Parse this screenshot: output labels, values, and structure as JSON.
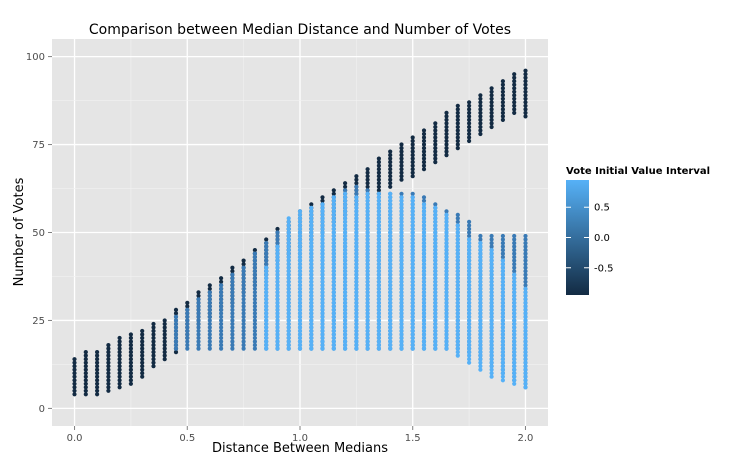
{
  "chart_data": {
    "type": "scatter",
    "title": "Comparison between Median Distance and Number of Votes",
    "xlabel": "Distance Between Medians",
    "ylabel": "Number of Votes",
    "xlim": [
      -0.1,
      2.1
    ],
    "ylim": [
      -5,
      105
    ],
    "x_ticks": [
      0.0,
      0.5,
      1.0,
      1.5,
      2.0
    ],
    "x_tick_labels": [
      "0.0",
      "0.5",
      "1.0",
      "1.5",
      "2.0"
    ],
    "y_ticks": [
      0,
      25,
      50,
      75,
      100
    ],
    "y_tick_labels": [
      "0",
      "25",
      "50",
      "75",
      "100"
    ],
    "grid": true,
    "x_step": 0.05,
    "color_low": "#132b43",
    "color_high": "#56b1f7",
    "background": "#e5e5e5",
    "legend": {
      "title": "Vote Initial Value Interval",
      "placement": "right",
      "range": [
        -0.95,
        0.95
      ],
      "ticks": [
        0.5,
        0.0,
        -0.5
      ],
      "tick_labels": [
        "0.5",
        "0.0",
        "-0.5"
      ]
    },
    "series": [
      {
        "color": "#132b43",
        "columns": [
          {
            "x": 0.0,
            "y": [
              4,
              14
            ]
          },
          {
            "x": 0.05,
            "y": [
              4,
              16
            ]
          },
          {
            "x": 0.1,
            "y": [
              4,
              16
            ]
          },
          {
            "x": 0.15,
            "y": [
              5,
              18
            ]
          },
          {
            "x": 0.2,
            "y": [
              6,
              20
            ]
          },
          {
            "x": 0.25,
            "y": [
              7,
              21
            ]
          },
          {
            "x": 0.3,
            "y": [
              9,
              22
            ]
          },
          {
            "x": 0.35,
            "y": [
              12,
              24
            ]
          },
          {
            "x": 0.4,
            "y": [
              14,
              25
            ]
          },
          {
            "x": 0.45,
            "y": [
              16,
              28
            ]
          },
          {
            "x": 0.5,
            "y": [
              20,
              30
            ]
          },
          {
            "x": 0.55,
            "y": [
              24,
              33
            ]
          },
          {
            "x": 0.6,
            "y": [
              26,
              35
            ]
          },
          {
            "x": 0.65,
            "y": [
              28,
              37
            ]
          },
          {
            "x": 0.7,
            "y": [
              30,
              40
            ]
          },
          {
            "x": 0.75,
            "y": [
              33,
              42
            ]
          },
          {
            "x": 0.8,
            "y": [
              35,
              45
            ]
          },
          {
            "x": 0.85,
            "y": [
              38,
              48
            ]
          },
          {
            "x": 0.9,
            "y": [
              42,
              51
            ]
          },
          {
            "x": 0.95,
            "y": [
              44,
              53
            ]
          },
          {
            "x": 1.0,
            "y": [
              46,
              56
            ]
          },
          {
            "x": 1.05,
            "y": [
              48,
              58
            ]
          },
          {
            "x": 1.1,
            "y": [
              50,
              60
            ]
          },
          {
            "x": 1.15,
            "y": [
              53,
              62
            ]
          },
          {
            "x": 1.2,
            "y": [
              55,
              64
            ]
          },
          {
            "x": 1.25,
            "y": [
              58,
              66
            ]
          },
          {
            "x": 1.3,
            "y": [
              60,
              68
            ]
          },
          {
            "x": 1.35,
            "y": [
              61,
              71
            ]
          },
          {
            "x": 1.4,
            "y": [
              63,
              73
            ]
          },
          {
            "x": 1.45,
            "y": [
              65,
              75
            ]
          },
          {
            "x": 1.5,
            "y": [
              66,
              77
            ]
          },
          {
            "x": 1.55,
            "y": [
              68,
              79
            ]
          },
          {
            "x": 1.6,
            "y": [
              70,
              81
            ]
          },
          {
            "x": 1.65,
            "y": [
              72,
              84
            ]
          },
          {
            "x": 1.7,
            "y": [
              74,
              86
            ]
          },
          {
            "x": 1.75,
            "y": [
              76,
              87
            ]
          },
          {
            "x": 1.8,
            "y": [
              78,
              89
            ]
          },
          {
            "x": 1.85,
            "y": [
              80,
              91
            ]
          },
          {
            "x": 1.9,
            "y": [
              82,
              93
            ]
          },
          {
            "x": 1.95,
            "y": [
              84,
              95
            ]
          },
          {
            "x": 2.0,
            "y": [
              83,
              96
            ]
          }
        ]
      },
      {
        "color": "#3a7ab5",
        "columns": [
          {
            "x": 0.45,
            "y": [
              17,
              26
            ]
          },
          {
            "x": 0.5,
            "y": [
              17,
              28
            ]
          },
          {
            "x": 0.55,
            "y": [
              17,
              31
            ]
          },
          {
            "x": 0.6,
            "y": [
              17,
              33
            ]
          },
          {
            "x": 0.65,
            "y": [
              17,
              35
            ]
          },
          {
            "x": 0.7,
            "y": [
              17,
              38
            ]
          },
          {
            "x": 0.75,
            "y": [
              17,
              40
            ]
          },
          {
            "x": 0.8,
            "y": [
              17,
              44
            ]
          },
          {
            "x": 0.85,
            "y": [
              17,
              47
            ]
          },
          {
            "x": 0.9,
            "y": [
              17,
              50
            ]
          },
          {
            "x": 0.95,
            "y": [
              17,
              52
            ]
          },
          {
            "x": 1.0,
            "y": [
              17,
              54
            ]
          },
          {
            "x": 1.05,
            "y": [
              17,
              56
            ]
          },
          {
            "x": 1.1,
            "y": [
              17,
              58
            ]
          },
          {
            "x": 1.15,
            "y": [
              17,
              60
            ]
          },
          {
            "x": 1.2,
            "y": [
              17,
              62
            ]
          },
          {
            "x": 1.25,
            "y": [
              17,
              63
            ]
          },
          {
            "x": 1.3,
            "y": [
              17,
              62
            ]
          },
          {
            "x": 1.35,
            "y": [
              17,
              61
            ]
          },
          {
            "x": 1.4,
            "y": [
              17,
              61
            ]
          },
          {
            "x": 1.45,
            "y": [
              17,
              61
            ]
          },
          {
            "x": 1.5,
            "y": [
              17,
              61
            ]
          },
          {
            "x": 1.55,
            "y": [
              17,
              60
            ]
          },
          {
            "x": 1.6,
            "y": [
              17,
              58
            ]
          },
          {
            "x": 1.65,
            "y": [
              17,
              56
            ]
          },
          {
            "x": 1.7,
            "y": [
              17,
              55
            ]
          },
          {
            "x": 1.75,
            "y": [
              16,
              53
            ]
          },
          {
            "x": 1.8,
            "y": [
              14,
              49
            ]
          },
          {
            "x": 1.85,
            "y": [
              12,
              49
            ]
          },
          {
            "x": 1.9,
            "y": [
              10,
              49
            ]
          },
          {
            "x": 1.95,
            "y": [
              8,
              49
            ]
          },
          {
            "x": 2.0,
            "y": [
              6,
              49
            ]
          }
        ]
      },
      {
        "color": "#56b1f7",
        "columns": [
          {
            "x": 0.85,
            "y": [
              17,
              40
            ]
          },
          {
            "x": 0.9,
            "y": [
              17,
              46
            ]
          },
          {
            "x": 0.95,
            "y": [
              17,
              54
            ]
          },
          {
            "x": 1.0,
            "y": [
              17,
              56
            ]
          },
          {
            "x": 1.05,
            "y": [
              17,
              57
            ]
          },
          {
            "x": 1.1,
            "y": [
              17,
              58
            ]
          },
          {
            "x": 1.15,
            "y": [
              17,
              60
            ]
          },
          {
            "x": 1.2,
            "y": [
              17,
              61
            ]
          },
          {
            "x": 1.25,
            "y": [
              17,
              60
            ]
          },
          {
            "x": 1.3,
            "y": [
              17,
              61
            ]
          },
          {
            "x": 1.35,
            "y": [
              17,
              61
            ]
          },
          {
            "x": 1.4,
            "y": [
              17,
              61
            ]
          },
          {
            "x": 1.45,
            "y": [
              17,
              60
            ]
          },
          {
            "x": 1.5,
            "y": [
              17,
              60
            ]
          },
          {
            "x": 1.55,
            "y": [
              17,
              58
            ]
          },
          {
            "x": 1.6,
            "y": [
              17,
              57
            ]
          },
          {
            "x": 1.65,
            "y": [
              17,
              55
            ]
          },
          {
            "x": 1.7,
            "y": [
              15,
              52
            ]
          },
          {
            "x": 1.75,
            "y": [
              13,
              48
            ]
          },
          {
            "x": 1.8,
            "y": [
              11,
              47
            ]
          },
          {
            "x": 1.85,
            "y": [
              9,
              45
            ]
          },
          {
            "x": 1.9,
            "y": [
              8,
              42
            ]
          },
          {
            "x": 1.95,
            "y": [
              7,
              38
            ]
          },
          {
            "x": 2.0,
            "y": [
              6,
              34
            ]
          }
        ]
      }
    ]
  }
}
